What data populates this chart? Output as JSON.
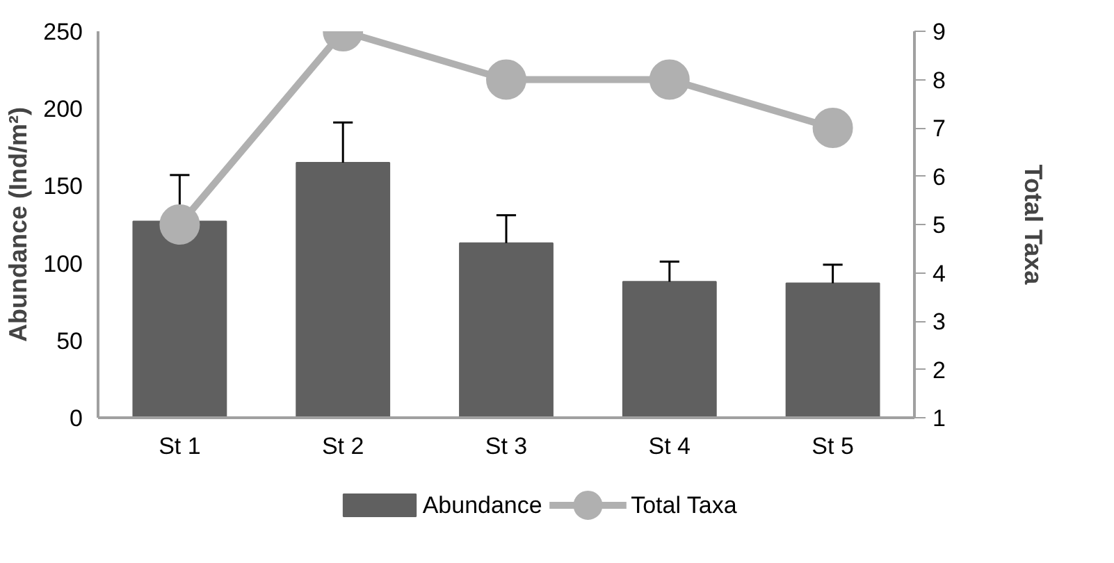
{
  "chart_data": {
    "type": "bar",
    "categories": [
      "St 1",
      "St 2",
      "St 3",
      "St 4",
      "St 5"
    ],
    "ylabel": "Abundance (Ind/m²)",
    "y2label": "Total Taxa",
    "ylim": [
      0,
      250
    ],
    "yticks": [
      0,
      50,
      100,
      150,
      200,
      250
    ],
    "y2lim": [
      1,
      9
    ],
    "y2ticks": [
      1,
      2,
      3,
      4,
      5,
      6,
      7,
      8,
      9
    ],
    "legend": "bottom",
    "grid": false,
    "series": [
      {
        "name": "Abundance",
        "color": "#606060",
        "values": [
          127,
          165,
          113,
          88,
          87
        ],
        "errors": [
          [
            127,
            157
          ],
          [
            165,
            191
          ],
          [
            113,
            131
          ],
          [
            88,
            101
          ],
          [
            87,
            99
          ]
        ]
      },
      {
        "name": "Total Taxa",
        "type": "line",
        "axis": "y2",
        "color": "#b0b0b0",
        "marker": "circle",
        "values": [
          5,
          9,
          8,
          8,
          7
        ]
      }
    ]
  }
}
